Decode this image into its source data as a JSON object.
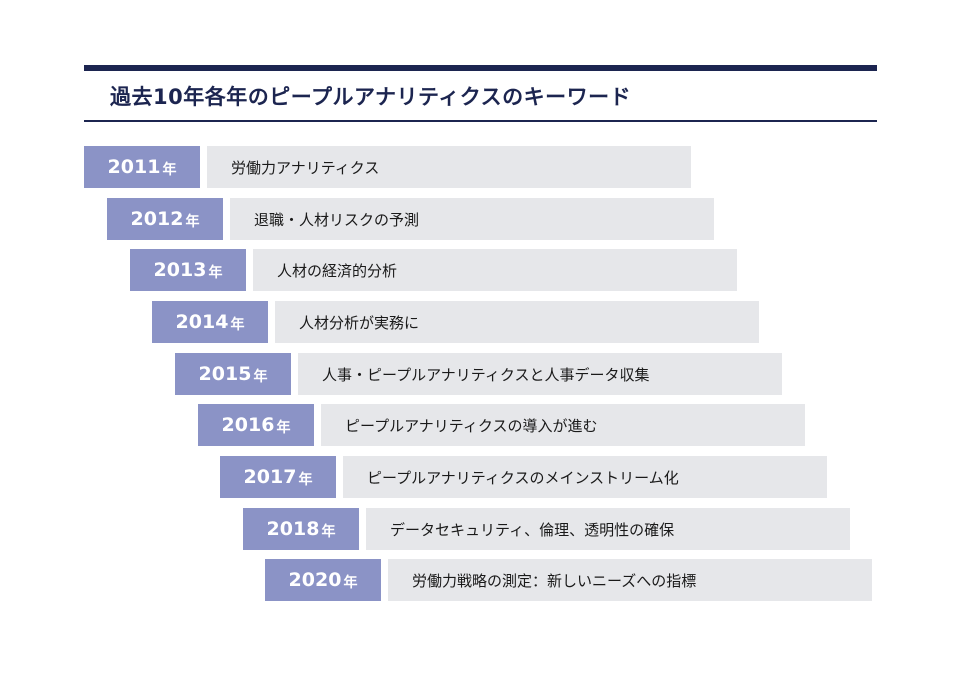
{
  "title": "過去10年各年のピープルアナリティクスのキーワード",
  "timeline": [
    {
      "year": "2011",
      "unit": "年",
      "keyword": "労働力アナリティクス"
    },
    {
      "year": "2012",
      "unit": "年",
      "keyword": "退職・人材リスクの予測"
    },
    {
      "year": "2013",
      "unit": "年",
      "keyword": "人材の経済的分析"
    },
    {
      "year": "2014",
      "unit": "年",
      "keyword": "人材分析が実務に"
    },
    {
      "year": "2015",
      "unit": "年",
      "keyword": "人事・ピープルアナリティクスと人事データ収集"
    },
    {
      "year": "2016",
      "unit": "年",
      "keyword": "ピープルアナリティクスの導入が進む"
    },
    {
      "year": "2017",
      "unit": "年",
      "keyword": "ピープルアナリティクスのメインストリーム化"
    },
    {
      "year": "2018",
      "unit": "年",
      "keyword": "データセキュリティ、倫理、透明性の確保"
    },
    {
      "year": "2020",
      "unit": "年",
      "keyword": "労働力戦略の測定：新しいニーズへの指標"
    }
  ],
  "colors": {
    "accent": "#1c2550",
    "year_fill": "#8b93c6",
    "keyword_fill": "#e6e7ea"
  }
}
